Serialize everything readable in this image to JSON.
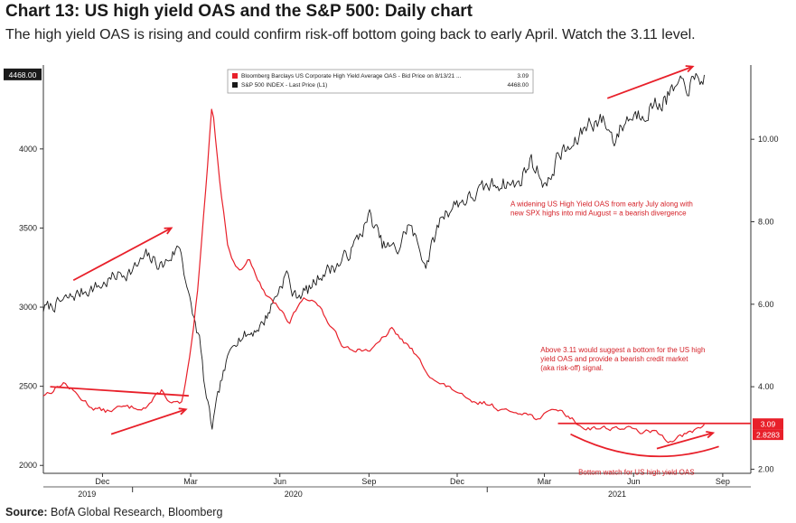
{
  "header": {
    "title": "Chart 13: US high yield OAS and the S&P 500: Daily chart",
    "subtitle": "The high yield OAS is rising and could confirm risk-off bottom going back to early April. Watch the 3.11 level."
  },
  "footer": {
    "source_label": "Source:",
    "source_text": "BofA Global Research, Bloomberg"
  },
  "chart_data": {
    "type": "line",
    "title": "",
    "xlabel": "",
    "ylabel": "",
    "x_range": [
      "2019-10-01",
      "2021-09-30"
    ],
    "x_ticks": [
      "Dec",
      "Mar",
      "Jun",
      "Sep",
      "Dec",
      "Mar",
      "Jun",
      "Sep"
    ],
    "x_tick_dates": [
      "2019-12-01",
      "2020-03-01",
      "2020-06-01",
      "2020-09-01",
      "2020-12-01",
      "2021-03-01",
      "2021-06-01",
      "2021-09-01"
    ],
    "x_years": [
      {
        "label": "2019",
        "date": "2019-11-15"
      },
      {
        "label": "2020",
        "date": "2020-06-15"
      },
      {
        "label": "2021",
        "date": "2021-05-15"
      }
    ],
    "y_left": {
      "min": 1950,
      "max": 4530,
      "ticks": [
        "2000",
        "2500",
        "3000",
        "3500",
        "4000"
      ],
      "tick_values": [
        2000,
        2500,
        3000,
        3500,
        4000
      ]
    },
    "y_right": {
      "min": 1.9,
      "max": 11.8,
      "ticks": [
        "2.00",
        "4.00",
        "6.00",
        "8.00",
        "10.00"
      ],
      "tick_values": [
        2,
        4,
        6,
        8,
        10
      ]
    },
    "legend": {
      "placement": "top-center",
      "entries": [
        {
          "label": "Bloomberg Barclays US Corporate High Yield Average OAS - Bid Price on 8/13/21 ...",
          "value": "3.09",
          "color": "#e8202a"
        },
        {
          "label": "S&P 500 INDEX - Last Price (L1)",
          "value": "4468.00",
          "color": "#1a1a1a"
        }
      ]
    },
    "last_value_tags": [
      {
        "text": "4468.00",
        "axis": "left",
        "value": 4468,
        "color": "#1a1a1a"
      },
      {
        "text": "3.09",
        "axis": "right",
        "value": 3.09,
        "color": "#e8202a"
      },
      {
        "text": "2.8283",
        "axis": "right",
        "value": 2.8283,
        "color": "#e8202a"
      }
    ],
    "series": [
      {
        "name": "S&P 500 INDEX - Last Price (L1)",
        "axis": "left",
        "color": "#1a1a1a",
        "x": [
          "2019-10-01",
          "2019-10-15",
          "2019-11-01",
          "2019-11-15",
          "2019-12-01",
          "2019-12-15",
          "2020-01-01",
          "2020-01-15",
          "2020-02-01",
          "2020-02-19",
          "2020-03-01",
          "2020-03-10",
          "2020-03-16",
          "2020-03-23",
          "2020-04-01",
          "2020-04-15",
          "2020-05-01",
          "2020-05-15",
          "2020-06-08",
          "2020-06-15",
          "2020-07-01",
          "2020-07-15",
          "2020-08-01",
          "2020-08-15",
          "2020-09-02",
          "2020-09-15",
          "2020-10-01",
          "2020-10-12",
          "2020-10-30",
          "2020-11-15",
          "2020-12-01",
          "2020-12-15",
          "2021-01-01",
          "2021-01-15",
          "2021-02-01",
          "2021-02-15",
          "2021-03-04",
          "2021-03-15",
          "2021-04-01",
          "2021-04-15",
          "2021-05-01",
          "2021-05-12",
          "2021-05-25",
          "2021-06-15",
          "2021-07-01",
          "2021-07-15",
          "2021-08-01",
          "2021-08-13"
        ],
        "values": [
          2990,
          3020,
          3070,
          3110,
          3140,
          3200,
          3230,
          3320,
          3260,
          3390,
          3000,
          2800,
          2470,
          2237,
          2520,
          2800,
          2830,
          2900,
          3220,
          3070,
          3110,
          3220,
          3270,
          3370,
          3580,
          3390,
          3360,
          3530,
          3270,
          3580,
          3660,
          3690,
          3760,
          3790,
          3770,
          3930,
          3760,
          3960,
          4020,
          4170,
          4180,
          4060,
          4190,
          4250,
          4300,
          4380,
          4410,
          4468
        ]
      },
      {
        "name": "Bloomberg Barclays US Corporate High Yield Average OAS - Bid Price on 8/13/21",
        "axis": "right",
        "color": "#e8202a",
        "x": [
          "2019-10-01",
          "2019-10-10",
          "2019-10-22",
          "2019-11-05",
          "2019-11-20",
          "2019-12-05",
          "2019-12-20",
          "2020-01-02",
          "2020-01-15",
          "2020-01-31",
          "2020-02-10",
          "2020-02-21",
          "2020-03-01",
          "2020-03-09",
          "2020-03-16",
          "2020-03-23",
          "2020-04-01",
          "2020-04-09",
          "2020-04-20",
          "2020-05-01",
          "2020-05-15",
          "2020-06-01",
          "2020-06-10",
          "2020-06-25",
          "2020-07-10",
          "2020-07-25",
          "2020-08-05",
          "2020-08-20",
          "2020-09-05",
          "2020-09-24",
          "2020-10-15",
          "2020-10-30",
          "2020-11-10",
          "2020-11-30",
          "2020-12-15",
          "2021-01-01",
          "2021-01-20",
          "2021-02-05",
          "2021-02-25",
          "2021-03-10",
          "2021-03-25",
          "2021-04-10",
          "2021-04-25",
          "2021-05-10",
          "2021-05-25",
          "2021-06-10",
          "2021-06-25",
          "2021-07-07",
          "2021-07-20",
          "2021-08-01",
          "2021-08-13"
        ],
        "values": [
          3.8,
          3.9,
          4.1,
          3.8,
          3.5,
          3.4,
          3.5,
          3.5,
          3.5,
          3.9,
          3.6,
          3.6,
          4.8,
          6.5,
          8.6,
          10.9,
          8.8,
          7.3,
          6.8,
          7.1,
          6.3,
          5.9,
          5.5,
          6.2,
          6.0,
          5.4,
          5.0,
          4.9,
          4.9,
          5.4,
          4.9,
          4.4,
          4.1,
          3.9,
          3.6,
          3.6,
          3.4,
          3.4,
          3.2,
          3.5,
          3.3,
          3.0,
          3.0,
          3.0,
          3.0,
          2.9,
          2.9,
          2.7,
          2.8,
          2.9,
          3.09
        ]
      }
    ],
    "annotations": [
      {
        "text": "A widening US High Yield OAS from early July along with new SPX highs into mid August = a bearish divergence",
        "lines": [
          "A widening US High Yield OAS from early July along with",
          "new SPX highs into mid August = a bearish divergence"
        ],
        "color": "#d41f26"
      },
      {
        "text": "Above 3.11 would suggest a bottom for the US high yield OAS and provide a bearish credit market (aka risk-off) signal.",
        "lines": [
          "Above 3.11 would suggest a bottom for the US high",
          "yield OAS and provide a bearish credit market",
          "(aka risk-off) signal."
        ],
        "color": "#d41f26"
      },
      {
        "text": "Bottom watch for US high yield OAS",
        "lines": [
          "Bottom watch for US high yield OAS"
        ],
        "color": "#d41f26"
      }
    ],
    "reference_lines": [
      {
        "axis": "right",
        "value": 3.11,
        "from": "2021-03-15",
        "to": "2021-09-30",
        "color": "#e8202a"
      },
      {
        "axis": "right",
        "from_value": 4.0,
        "to_value": 3.78,
        "from": "2019-10-08",
        "to": "2020-02-28",
        "color": "#e8202a"
      }
    ],
    "colors": {
      "spx": "#1a1a1a",
      "oas": "#e8202a",
      "axis": "#333333"
    },
    "grid": false
  }
}
